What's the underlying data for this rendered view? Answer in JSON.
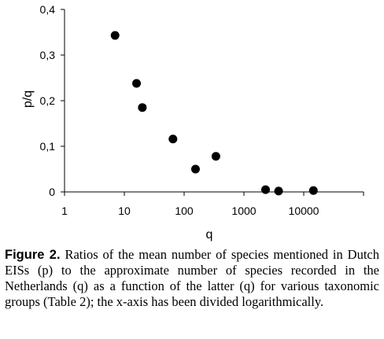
{
  "chart_data": {
    "type": "scatter",
    "xlabel": "q",
    "ylabel": "p/q",
    "xscale": "log",
    "xlim": [
      1,
      100000
    ],
    "ylim": [
      0,
      0.4
    ],
    "xticks": [
      1,
      10,
      100,
      1000,
      10000
    ],
    "xtick_labels": [
      "1",
      "10",
      "100",
      "1000",
      "10000"
    ],
    "yticks": [
      0,
      0.1,
      0.2,
      0.3,
      0.4
    ],
    "ytick_labels": [
      "0",
      "0,1",
      "0,2",
      "0,3",
      "0,4"
    ],
    "grid": false,
    "marker_color": "#000000",
    "points": [
      {
        "x": 7,
        "y": 0.343
      },
      {
        "x": 16,
        "y": 0.238
      },
      {
        "x": 20,
        "y": 0.185
      },
      {
        "x": 65,
        "y": 0.116
      },
      {
        "x": 155,
        "y": 0.05
      },
      {
        "x": 340,
        "y": 0.078
      },
      {
        "x": 2300,
        "y": 0.005
      },
      {
        "x": 3800,
        "y": 0.002
      },
      {
        "x": 14500,
        "y": 0.003
      }
    ]
  },
  "caption": {
    "label": "Figure 2.",
    "text": " Ratios of the mean number of species mentioned in Dutch EISs (p) to the approximate number of species recorded in the Netherlands (q) as a function of the latter (q) for various taxonomic groups (Table 2); the x-axis has been divided logarithmically."
  }
}
